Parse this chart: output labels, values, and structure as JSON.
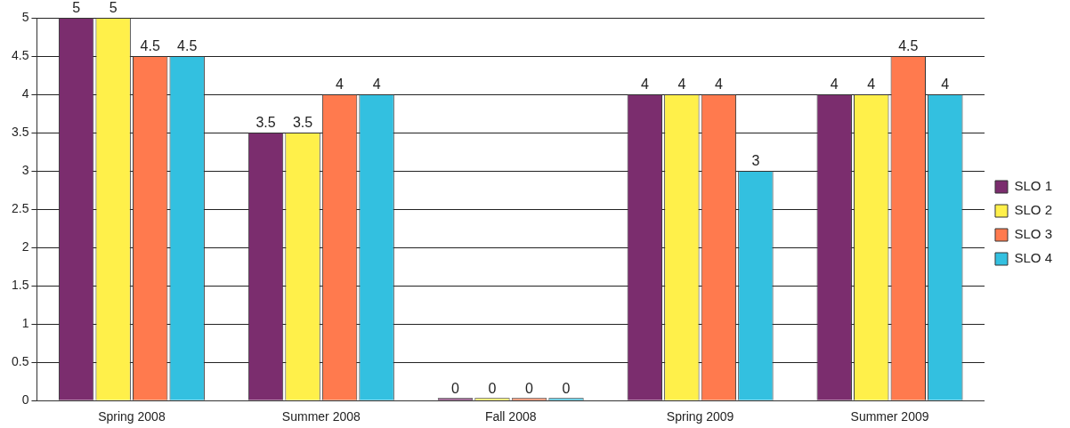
{
  "chart_data": {
    "type": "bar",
    "categories": [
      "Spring 2008",
      "Summer 2008",
      "Fall 2008",
      "Spring 2009",
      "Summer 2009"
    ],
    "series": [
      {
        "name": "SLO 1",
        "color": "#7b2d6e",
        "values": [
          5,
          3.5,
          0,
          4,
          4
        ]
      },
      {
        "name": "SLO 2",
        "color": "#fff04a",
        "values": [
          5,
          3.5,
          0,
          4,
          4
        ]
      },
      {
        "name": "SLO 3",
        "color": "#ff7a4e",
        "values": [
          4.5,
          4,
          0,
          4,
          4.5
        ]
      },
      {
        "name": "SLO 4",
        "color": "#33c0e0",
        "values": [
          4.5,
          4,
          0,
          3,
          4
        ]
      }
    ],
    "ylim": [
      0,
      5
    ],
    "yticks": [
      0,
      0.5,
      1,
      1.5,
      2,
      2.5,
      3,
      3.5,
      4,
      4.5,
      5
    ],
    "grid": "y",
    "legend": "right",
    "data_labels": true
  }
}
